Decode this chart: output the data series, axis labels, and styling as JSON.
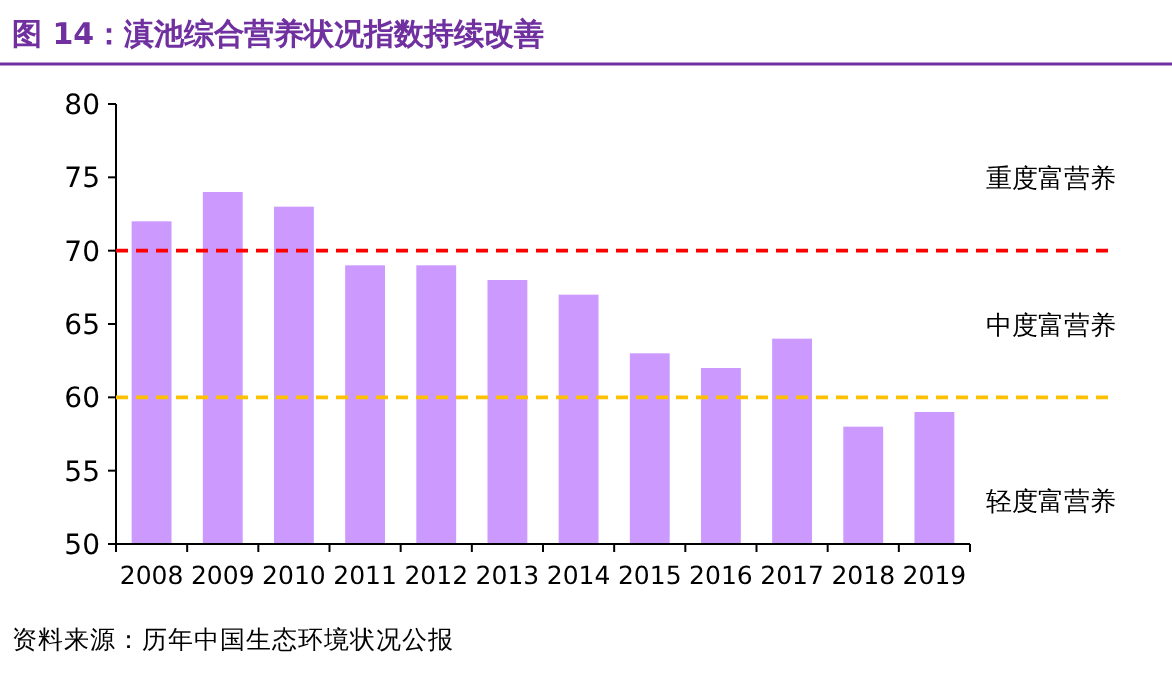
{
  "chart_data": {
    "type": "bar",
    "title": "图 14：滇池综合营养状况指数持续改善",
    "categories": [
      "2008",
      "2009",
      "2010",
      "2011",
      "2012",
      "2013",
      "2014",
      "2015",
      "2016",
      "2017",
      "2018",
      "2019"
    ],
    "values": [
      72,
      74,
      73,
      69,
      69,
      68,
      67,
      63,
      62,
      64,
      58,
      59
    ],
    "color": "#cc99ff",
    "ylim": [
      50,
      80
    ],
    "yticks": [
      50,
      55,
      60,
      65,
      70,
      75,
      80
    ],
    "grid": false,
    "ref_lines": [
      {
        "axis": "y",
        "value": 70,
        "color": "#ff0000",
        "line_style": "dashed"
      },
      {
        "axis": "y",
        "value": 60,
        "color": "#ffc000",
        "line_style": "dashed"
      }
    ],
    "annotations": [
      "重度富营养",
      "中度富营养",
      "轻度富营养",
      "资料来源：历年中国生态环境状况公报"
    ]
  }
}
